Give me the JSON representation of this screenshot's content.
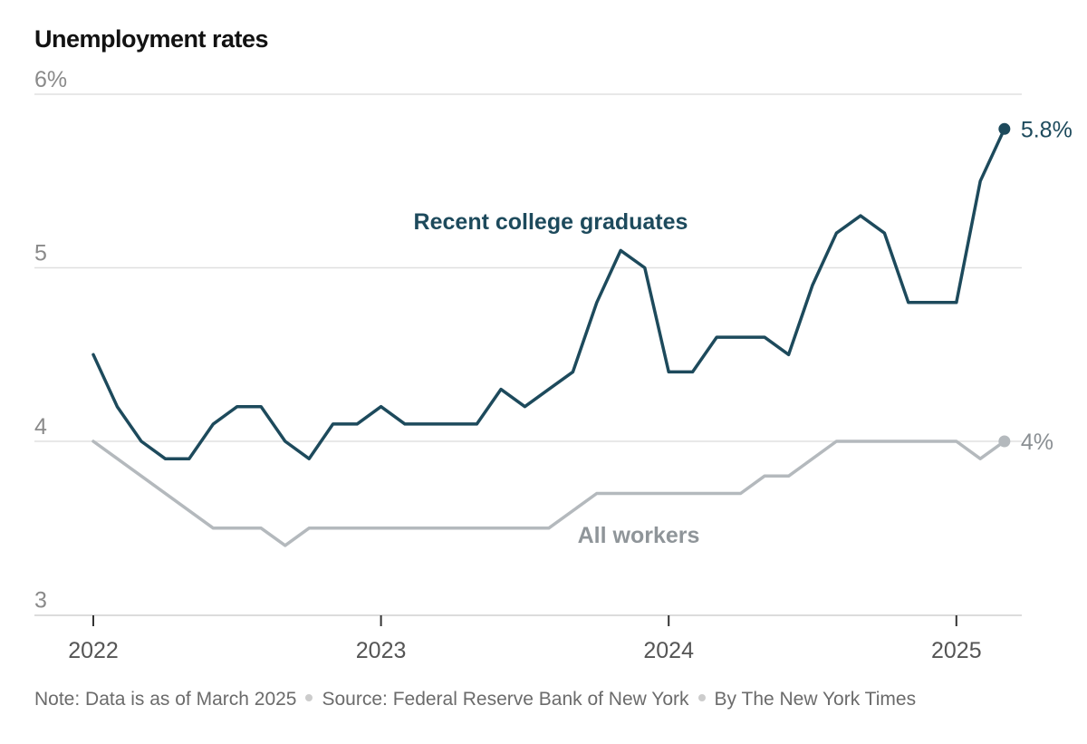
{
  "chart_data": {
    "type": "line",
    "title": "Unemployment rates",
    "xlabel": "",
    "ylabel": "",
    "x_range": [
      2022.0,
      2025.25
    ],
    "ylim": [
      3,
      6
    ],
    "y_ticks": [
      {
        "value": 6,
        "label": "6%"
      },
      {
        "value": 5,
        "label": "5"
      },
      {
        "value": 4,
        "label": "4"
      },
      {
        "value": 3,
        "label": "3"
      }
    ],
    "x_ticks": [
      {
        "value": 2022,
        "label": "2022"
      },
      {
        "value": 2023,
        "label": "2023"
      },
      {
        "value": 2024,
        "label": "2024"
      },
      {
        "value": 2025,
        "label": "2025"
      }
    ],
    "grid": true,
    "series": [
      {
        "name": "Recent college graduates",
        "color": "#1d4a5c",
        "end_label": "5.8%",
        "points": [
          [
            2022.0,
            4.5
          ],
          [
            2022.083,
            4.2
          ],
          [
            2022.167,
            4.0
          ],
          [
            2022.25,
            3.9
          ],
          [
            2022.333,
            3.9
          ],
          [
            2022.417,
            4.1
          ],
          [
            2022.5,
            4.2
          ],
          [
            2022.583,
            4.2
          ],
          [
            2022.667,
            4.0
          ],
          [
            2022.75,
            3.9
          ],
          [
            2022.833,
            4.1
          ],
          [
            2022.917,
            4.1
          ],
          [
            2023.0,
            4.2
          ],
          [
            2023.083,
            4.1
          ],
          [
            2023.167,
            4.1
          ],
          [
            2023.25,
            4.1
          ],
          [
            2023.333,
            4.1
          ],
          [
            2023.417,
            4.3
          ],
          [
            2023.5,
            4.2
          ],
          [
            2023.583,
            4.3
          ],
          [
            2023.667,
            4.4
          ],
          [
            2023.75,
            4.8
          ],
          [
            2023.833,
            5.1
          ],
          [
            2023.917,
            5.0
          ],
          [
            2024.0,
            4.4
          ],
          [
            2024.083,
            4.4
          ],
          [
            2024.167,
            4.6
          ],
          [
            2024.25,
            4.6
          ],
          [
            2024.333,
            4.6
          ],
          [
            2024.417,
            4.5
          ],
          [
            2024.5,
            4.9
          ],
          [
            2024.583,
            5.2
          ],
          [
            2024.667,
            5.3
          ],
          [
            2024.75,
            5.2
          ],
          [
            2024.833,
            4.8
          ],
          [
            2024.917,
            4.8
          ],
          [
            2025.0,
            4.8
          ],
          [
            2025.083,
            5.5
          ],
          [
            2025.167,
            5.8
          ]
        ]
      },
      {
        "name": "All workers",
        "color": "#b4b9bd",
        "end_label": "4%",
        "points": [
          [
            2022.0,
            4.0
          ],
          [
            2022.167,
            3.8
          ],
          [
            2022.417,
            3.5
          ],
          [
            2022.583,
            3.5
          ],
          [
            2022.667,
            3.4
          ],
          [
            2022.75,
            3.5
          ],
          [
            2023.583,
            3.5
          ],
          [
            2023.75,
            3.7
          ],
          [
            2024.25,
            3.7
          ],
          [
            2024.333,
            3.8
          ],
          [
            2024.417,
            3.8
          ],
          [
            2024.583,
            4.0
          ],
          [
            2025.0,
            4.0
          ],
          [
            2025.083,
            3.9
          ],
          [
            2025.167,
            4.0
          ]
        ]
      }
    ]
  },
  "footnote": {
    "note": "Note: Data is as of March 2025",
    "source": "Source: Federal Reserve Bank of New York",
    "byline": "By The New York Times"
  }
}
